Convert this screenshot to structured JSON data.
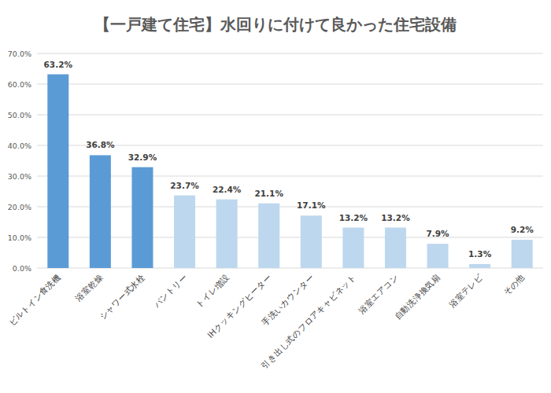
{
  "chart_data": {
    "type": "bar",
    "title": "【一戸建て住宅】水回りに付けて良かった住宅設備",
    "categories": [
      "ビルトイン食洗機",
      "浴室乾燥",
      "シャワー式水栓",
      "パントリー",
      "トイレ増設",
      "IHクッキングヒーター",
      "手洗いカウンター",
      "引き出し式のフロアキャビネット",
      "浴室エアコン",
      "自動洗浄換気扇",
      "浴室テレビ",
      "その他"
    ],
    "values": [
      63.2,
      36.8,
      32.9,
      23.7,
      22.4,
      21.1,
      17.1,
      13.2,
      13.2,
      7.9,
      1.3,
      9.2
    ],
    "value_labels": [
      "63.2%",
      "36.8%",
      "32.9%",
      "23.7%",
      "22.4%",
      "21.1%",
      "17.1%",
      "13.2%",
      "13.2%",
      "7.9%",
      "1.3%",
      "9.2%"
    ],
    "colors": [
      "#5b9bd5",
      "#5b9bd5",
      "#5b9bd5",
      "#bdd7ee",
      "#bdd7ee",
      "#bdd7ee",
      "#bdd7ee",
      "#bdd7ee",
      "#bdd7ee",
      "#bdd7ee",
      "#bdd7ee",
      "#bdd7ee"
    ],
    "ylim": [
      0,
      70
    ],
    "yticks": [
      {
        "value": 0,
        "label": "0.0%"
      },
      {
        "value": 10,
        "label": "10.0%"
      },
      {
        "value": 20,
        "label": "20.0%"
      },
      {
        "value": 30,
        "label": "30.0%"
      },
      {
        "value": 40,
        "label": "40.0%"
      },
      {
        "value": 50,
        "label": "50.0%"
      },
      {
        "value": 60,
        "label": "60.0%"
      },
      {
        "value": 70,
        "label": "70.0%"
      }
    ],
    "grid": true,
    "data_labels": true
  }
}
